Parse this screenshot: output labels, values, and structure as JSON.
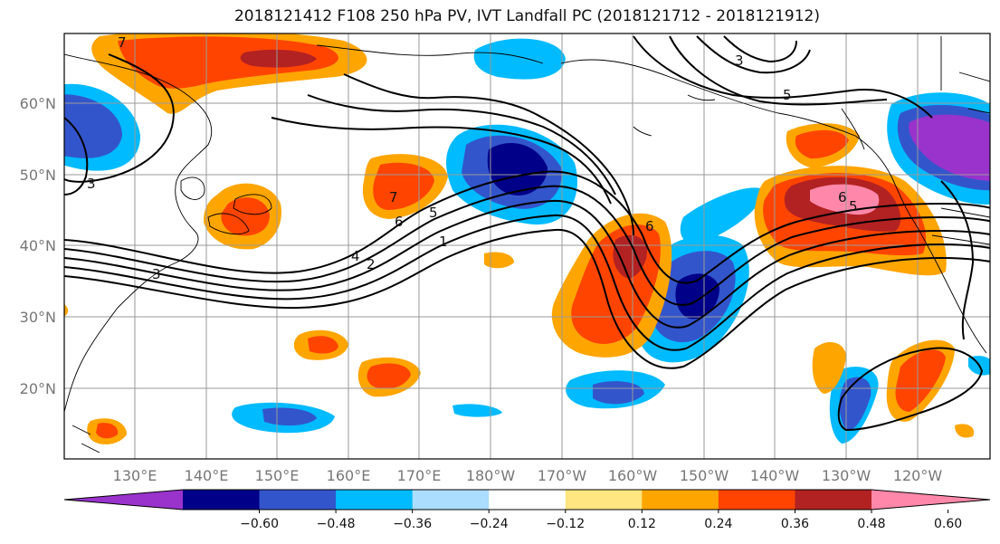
{
  "title": "2018121412 F108 250 hPa PV, IVT Landfall PC (2018121712 - 2018121912)",
  "lat_labels": [
    "60°N",
    "50°N",
    "40°N",
    "30°N",
    "20°N"
  ],
  "lon_labels": [
    "130°E",
    "140°E",
    "150°E",
    "160°E",
    "170°E",
    "180°W",
    "170°W",
    "160°W",
    "150°W",
    "140°W",
    "130°W",
    "120°W"
  ],
  "contour_labels": [
    "7",
    "3",
    "5",
    "3",
    "7",
    "6",
    "5",
    "1",
    "4",
    "2",
    "3",
    "6",
    "6",
    "5"
  ],
  "colorbar": {
    "ticks": [
      "−0.60",
      "−0.48",
      "−0.36",
      "−0.24",
      "−0.12",
      "0.12",
      "0.24",
      "0.36",
      "0.48",
      "0.60"
    ],
    "colors": [
      "#9933cc",
      "#000088",
      "#3355cc",
      "#00bbff",
      "#aaddff",
      "#ffffff",
      "#ffe680",
      "#ffa500",
      "#ff4400",
      "#b22222",
      "#ff88aa"
    ]
  }
}
